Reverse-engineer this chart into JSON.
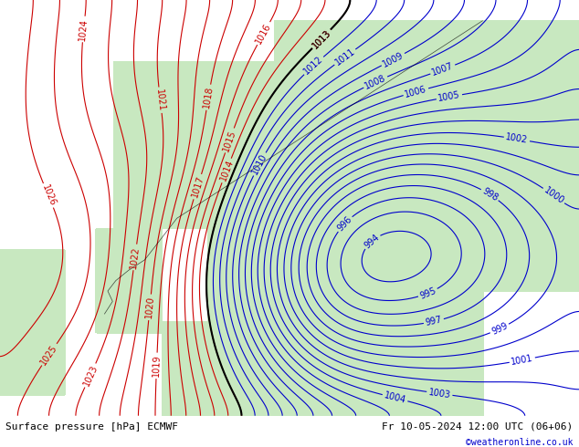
{
  "title_left": "Surface pressure [hPa] ECMWF",
  "title_right": "Fr 10-05-2024 12:00 UTC (06+06)",
  "watermark": "©weatheronline.co.uk",
  "background_color": "#d0d8e8",
  "land_color": "#c8e8c0",
  "sea_color": "#d0d8e8",
  "figsize": [
    6.34,
    4.9
  ],
  "dpi": 100,
  "pressure_levels_red": [
    1013,
    1014,
    1015,
    1016,
    1017,
    1018,
    1019,
    1020,
    1021,
    1022,
    1023,
    1024,
    1025,
    1026
  ],
  "pressure_levels_blue": [
    994,
    995,
    996,
    997,
    998,
    999,
    1000,
    1001,
    1002,
    1003,
    1004,
    1005,
    1006,
    1007,
    1008,
    1009,
    1010,
    1011,
    1012
  ],
  "pressure_levels_black": [
    1013
  ],
  "contour_color_red": "#cc0000",
  "contour_color_blue": "#0000cc",
  "contour_color_black": "#000000",
  "label_fontsize": 7,
  "footer_fontsize": 8,
  "watermark_color": "#0000cc",
  "footer_bg": "#d0d8e8"
}
